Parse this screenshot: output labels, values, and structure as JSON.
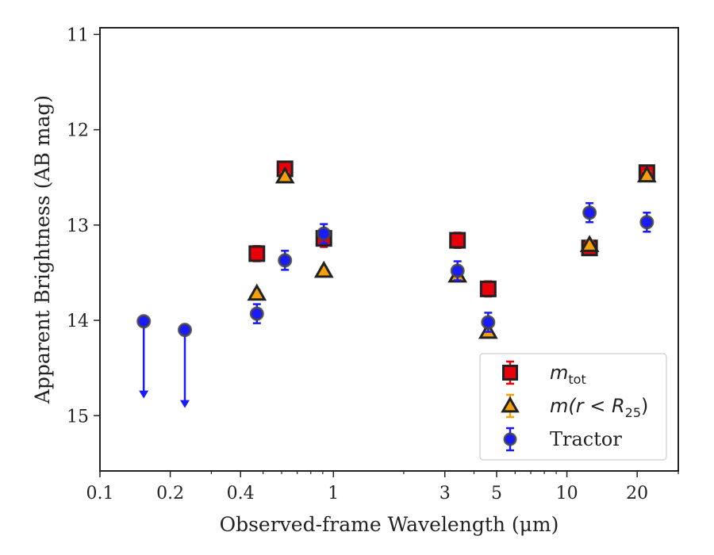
{
  "chart_data": {
    "type": "scatter",
    "xlabel": "Observed-frame Wavelength (μm)",
    "ylabel": "Apparent Brightness (AB mag)",
    "xscale": "log",
    "xlim": [
      0.1,
      30
    ],
    "ylim": [
      15.58,
      10.93
    ],
    "y_inverted": true,
    "x_ticks": [
      {
        "value": 0.1,
        "label": "0.1"
      },
      {
        "value": 0.2,
        "label": "0.2"
      },
      {
        "value": 0.4,
        "label": "0.4"
      },
      {
        "value": 1,
        "label": "1"
      },
      {
        "value": 3,
        "label": "3"
      },
      {
        "value": 5,
        "label": "5"
      },
      {
        "value": 10,
        "label": "10"
      },
      {
        "value": 20,
        "label": "20"
      }
    ],
    "y_ticks": [
      11,
      12,
      13,
      14,
      15
    ],
    "grid": false,
    "legend_position": "lower-right",
    "series": [
      {
        "name": "m_tot",
        "legend_main": "m",
        "legend_sub": "tot",
        "marker": "square",
        "fill": "#e8000b",
        "edge": "#222222",
        "errcolor": "#e8000b",
        "points": [
          {
            "x": 0.47,
            "y": 13.3,
            "err": 0.08
          },
          {
            "x": 0.62,
            "y": 12.41,
            "err": 0.07
          },
          {
            "x": 0.91,
            "y": 13.14,
            "err": 0.09
          },
          {
            "x": 3.4,
            "y": 13.16,
            "err": 0.08
          },
          {
            "x": 4.6,
            "y": 13.67,
            "err": 0.08
          },
          {
            "x": 12.5,
            "y": 13.24,
            "err": 0.07
          },
          {
            "x": 22.0,
            "y": 12.45,
            "err": 0.07
          }
        ]
      },
      {
        "name": "m(r < R25)",
        "legend_main": "m(r < R",
        "legend_sub": "25",
        "legend_tail": ")",
        "marker": "triangle",
        "fill": "#f5a00a",
        "edge": "#222222",
        "errcolor": "#f5a00a",
        "points": [
          {
            "x": 0.47,
            "y": 13.72,
            "err": 0.04
          },
          {
            "x": 0.62,
            "y": 12.49,
            "err": 0.04
          },
          {
            "x": 0.91,
            "y": 13.48,
            "err": 0.04
          },
          {
            "x": 3.4,
            "y": 13.53,
            "err": 0.04
          },
          {
            "x": 4.6,
            "y": 14.12,
            "err": 0.04
          },
          {
            "x": 12.5,
            "y": 13.21,
            "err": 0.04
          },
          {
            "x": 22.0,
            "y": 12.48,
            "err": 0.04
          }
        ]
      },
      {
        "name": "Tractor",
        "legend_main": "Tractor",
        "marker": "circle",
        "fill": "#1a1aff",
        "edge": "#444444",
        "errcolor": "#1a1aff",
        "points": [
          {
            "x": 0.154,
            "y": 14.01,
            "err": 0,
            "upper_limit_to": 14.82
          },
          {
            "x": 0.231,
            "y": 14.1,
            "err": 0,
            "upper_limit_to": 14.92
          },
          {
            "x": 0.47,
            "y": 13.93,
            "err": 0.1
          },
          {
            "x": 0.62,
            "y": 13.37,
            "err": 0.1
          },
          {
            "x": 0.91,
            "y": 13.09,
            "err": 0.1
          },
          {
            "x": 3.4,
            "y": 13.48,
            "err": 0.1
          },
          {
            "x": 4.6,
            "y": 14.02,
            "err": 0.1
          },
          {
            "x": 12.5,
            "y": 12.87,
            "err": 0.1
          },
          {
            "x": 22.0,
            "y": 12.97,
            "err": 0.1
          }
        ]
      }
    ]
  }
}
